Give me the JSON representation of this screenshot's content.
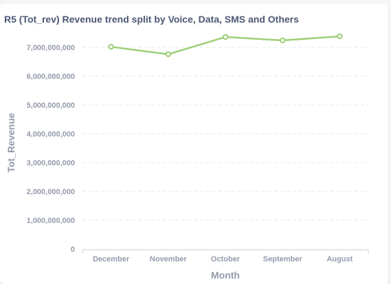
{
  "card": {
    "title": "R5 (Tot_rev) Revenue trend split by Voice, Data, SMS and Others"
  },
  "colors": {
    "line": "#9ccf76",
    "grid": "#e6e8ec",
    "axis": "#c9ccd4",
    "tick_text": "#949aab",
    "title_text": "#4c5773",
    "background": "#ffffff"
  },
  "chart_data": {
    "type": "line",
    "title": "R5 (Tot_rev) Revenue trend split by Voice, Data, SMS and Others",
    "xlabel": "Month",
    "ylabel": "Tot_Revenue",
    "categories": [
      "December",
      "November",
      "October",
      "September",
      "August"
    ],
    "series": [
      {
        "values": [
          7020000000,
          6760000000,
          7360000000,
          7240000000,
          7380000000
        ]
      }
    ],
    "ylim": [
      0,
      7000000000
    ],
    "yticks": [
      {
        "value": 0,
        "label": "0"
      },
      {
        "value": 1000000000,
        "label": "1,000,000,000"
      },
      {
        "value": 2000000000,
        "label": "2,000,000,000"
      },
      {
        "value": 3000000000,
        "label": "3,000,000,000"
      },
      {
        "value": 4000000000,
        "label": "4,000,000,000"
      },
      {
        "value": 5000000000,
        "label": "5,000,000,000"
      },
      {
        "value": 6000000000,
        "label": "6,000,000,000"
      },
      {
        "value": 7000000000,
        "label": "7,000,000,000"
      }
    ],
    "grid": true,
    "legend": "none"
  }
}
